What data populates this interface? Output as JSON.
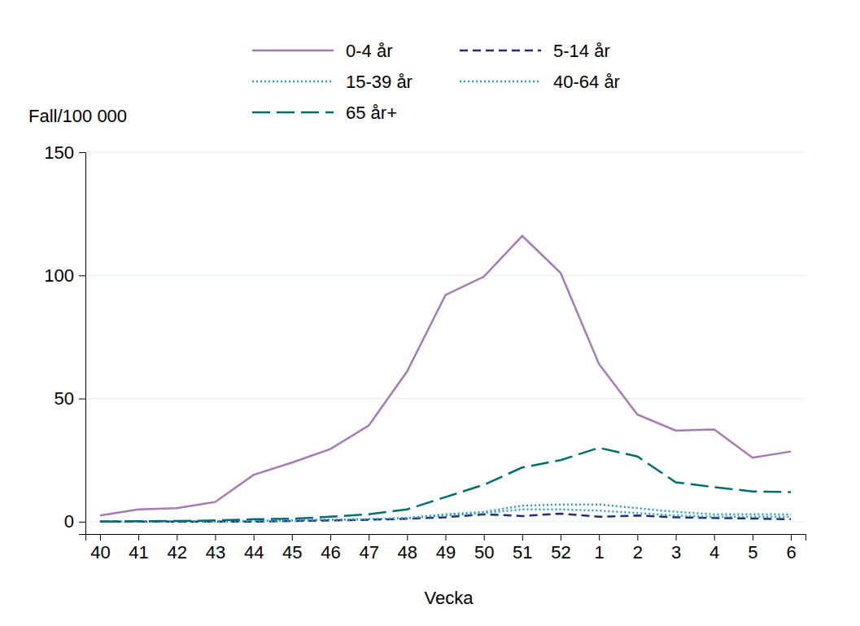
{
  "chart_data": {
    "type": "line",
    "y_label": "Fall/100 000",
    "x_label": "Vecka",
    "categories": [
      "40",
      "41",
      "42",
      "43",
      "44",
      "45",
      "46",
      "47",
      "48",
      "49",
      "50",
      "51",
      "52",
      "1",
      "2",
      "3",
      "4",
      "5",
      "6"
    ],
    "ylim": [
      -5,
      150
    ],
    "yticks": [
      0,
      50,
      100,
      150
    ],
    "grid": true,
    "legend": "top",
    "series": [
      {
        "name": "0-4 år",
        "color": "#a57bb5",
        "line_style": "solid",
        "values": [
          2.5,
          5,
          5.5,
          8,
          19,
          24,
          29.5,
          39,
          61,
          92,
          99.5,
          116,
          101,
          64,
          43.5,
          37,
          37.5,
          26,
          28.5
        ]
      },
      {
        "name": "5-14 år",
        "color": "#1f2f7a",
        "line_style": "dashed",
        "values": [
          0,
          0,
          0,
          0,
          0,
          0.3,
          0.5,
          0.8,
          1.2,
          1.8,
          3,
          2.3,
          3.3,
          2,
          2.5,
          1.8,
          1.5,
          1.3,
          1
        ]
      },
      {
        "name": "15-39 år",
        "color": "#2fa3a3",
        "line_style": "dotted",
        "values": [
          0,
          0,
          0,
          0.2,
          0.3,
          0.5,
          0.8,
          1,
          1.5,
          2.5,
          3.5,
          5,
          5,
          4.5,
          3.5,
          2.5,
          2,
          2,
          2
        ]
      },
      {
        "name": "40-64 år",
        "color": "#2e9bd6",
        "line_style": "dotted",
        "values": [
          0,
          0,
          0,
          0,
          0.3,
          0.5,
          0.8,
          1,
          1.5,
          3,
          4,
          6.5,
          7,
          7,
          5.5,
          4,
          3,
          3,
          3
        ]
      },
      {
        "name": "65 år+",
        "color": "#006e6e",
        "line_style": "long-dash",
        "values": [
          0,
          0.2,
          0.3,
          0.5,
          1,
          1.2,
          2,
          3,
          5,
          10,
          15,
          22,
          25,
          30,
          26.5,
          16,
          14,
          12.3,
          12
        ]
      }
    ]
  }
}
